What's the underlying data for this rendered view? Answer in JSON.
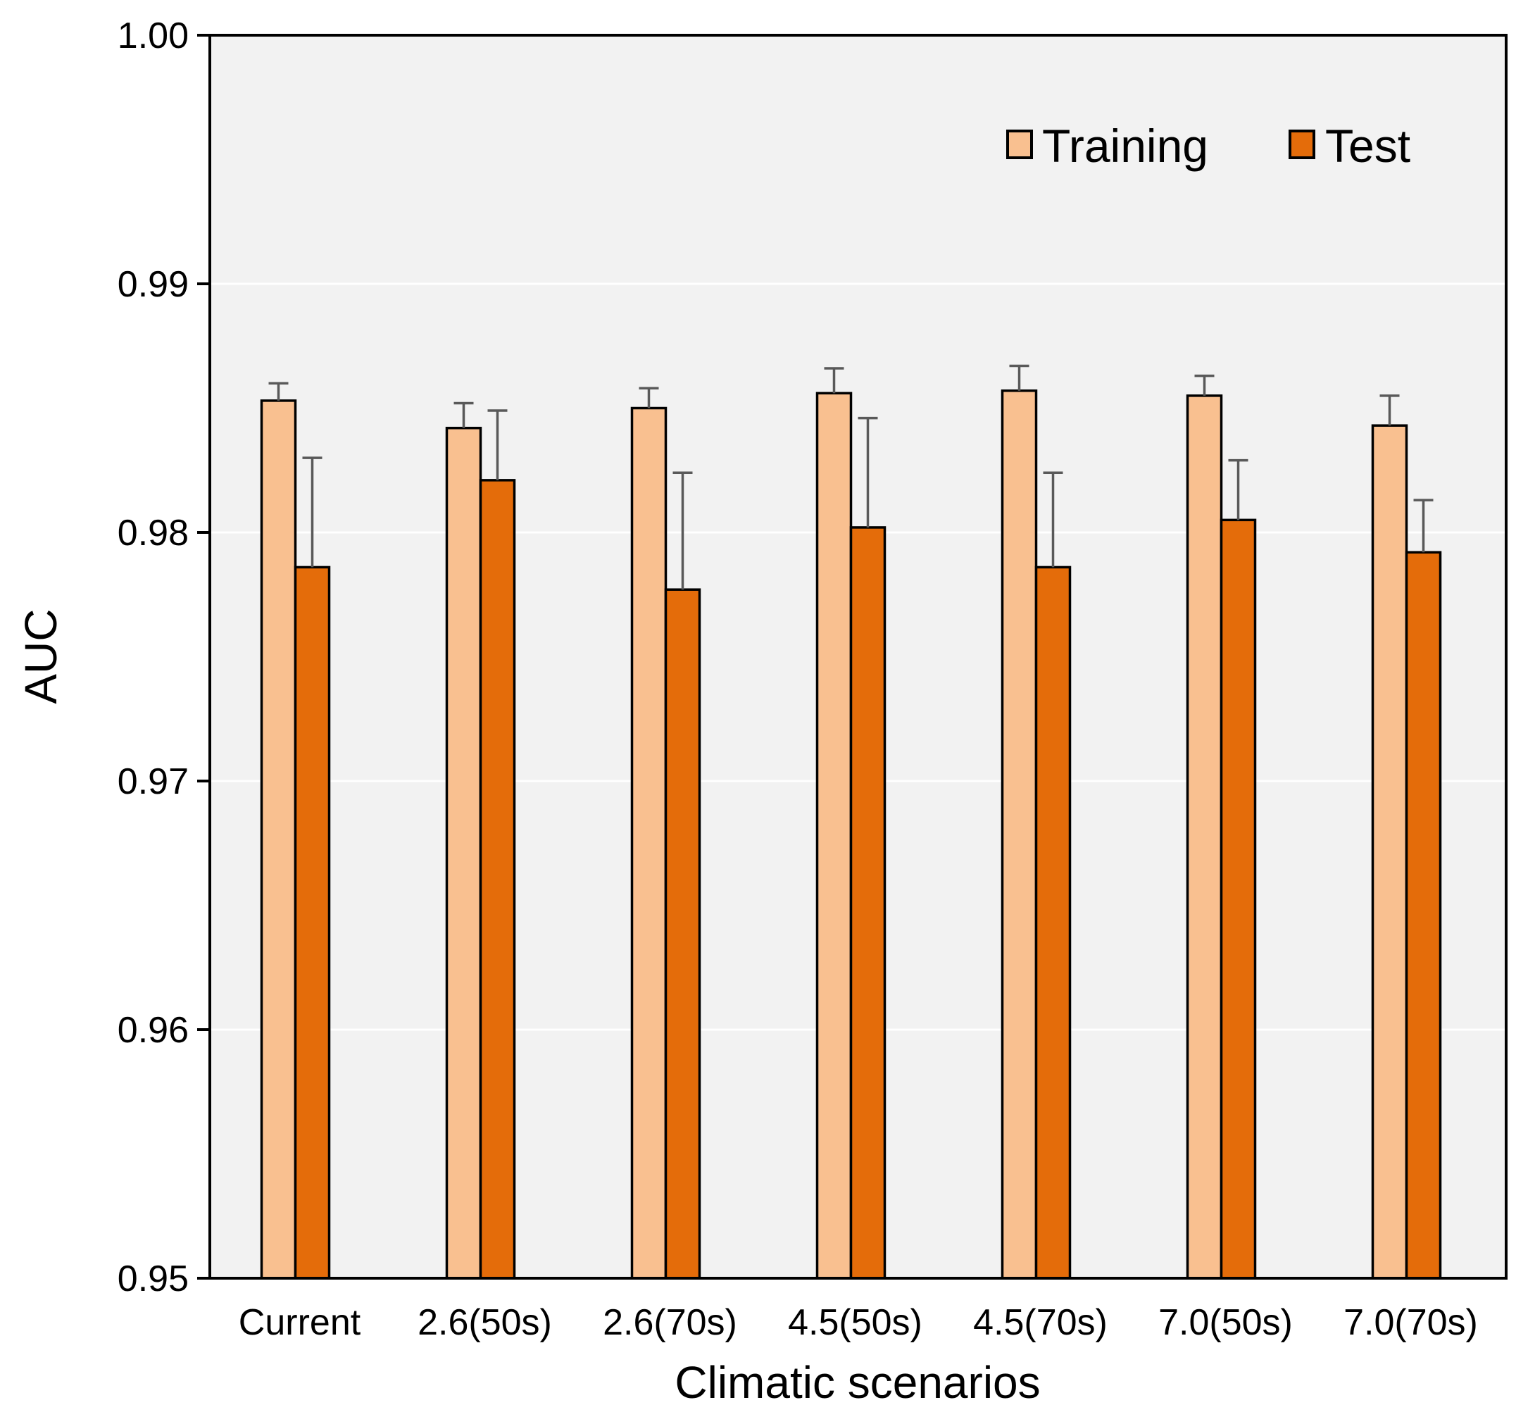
{
  "chart_data": {
    "type": "bar",
    "title": "",
    "xlabel": "Climatic scenarios",
    "ylabel": "AUC",
    "ylim": [
      0.95,
      1.0
    ],
    "yticks": [
      0.95,
      0.96,
      0.97,
      0.98,
      0.99,
      1.0
    ],
    "ytick_labels": [
      "0.95",
      "0.96",
      "0.97",
      "0.98",
      "0.99",
      "1.00"
    ],
    "grid": "horizontal",
    "legend_position": "top-right",
    "categories": [
      "Current",
      "2.6(50s)",
      "2.6(70s)",
      "4.5(50s)",
      "4.5(70s)",
      "7.0(50s)",
      "7.0(70s)"
    ],
    "series": [
      {
        "name": "Training",
        "color": "#F9C090",
        "values": [
          0.9853,
          0.9842,
          0.985,
          0.9856,
          0.9857,
          0.9855,
          0.9843
        ],
        "errors": [
          0.0007,
          0.001,
          0.0008,
          0.001,
          0.001,
          0.0008,
          0.0012
        ]
      },
      {
        "name": "Test",
        "color": "#E46C0A",
        "values": [
          0.9786,
          0.9821,
          0.9777,
          0.9802,
          0.9786,
          0.9805,
          0.9792
        ],
        "errors": [
          0.0044,
          0.0028,
          0.0047,
          0.0044,
          0.0038,
          0.0024,
          0.0021
        ]
      }
    ]
  }
}
